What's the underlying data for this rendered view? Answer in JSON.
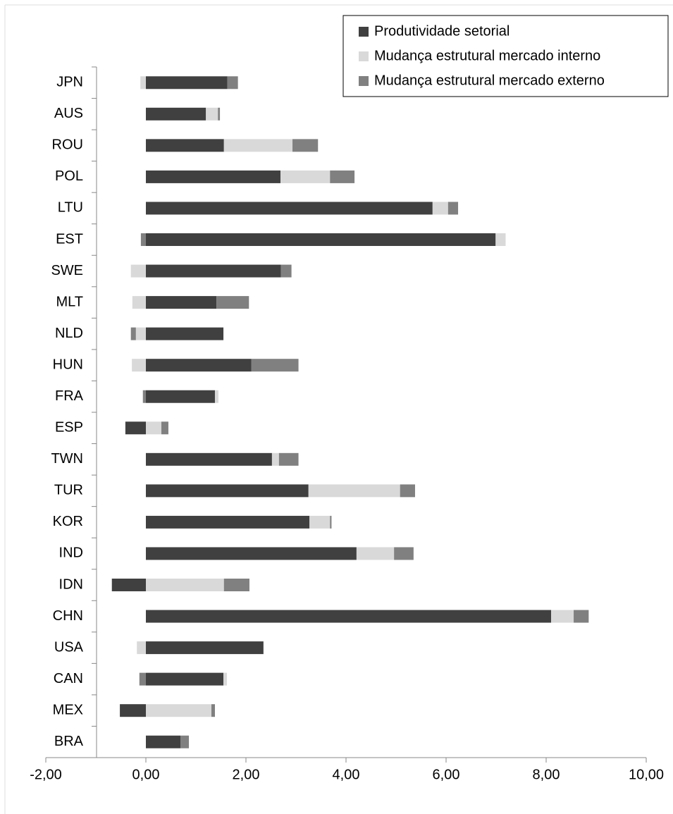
{
  "chart_data": {
    "type": "stacked-bar-horizontal",
    "categories": [
      "JPN",
      "AUS",
      "ROU",
      "POL",
      "LTU",
      "EST",
      "SWE",
      "MLT",
      "NLD",
      "HUN",
      "FRA",
      "ESP",
      "TWN",
      "TUR",
      "KOR",
      "IND",
      "IDN",
      "CHN",
      "USA",
      "CAN",
      "MEX",
      "BRA"
    ],
    "series": [
      {
        "name": "Produtividade setorial",
        "color": "#404040",
        "values": [
          1.63,
          1.2,
          1.56,
          2.69,
          5.73,
          6.99,
          2.7,
          1.41,
          1.55,
          2.11,
          1.38,
          -0.41,
          2.52,
          3.25,
          3.27,
          4.21,
          -0.68,
          8.1,
          2.35,
          1.55,
          -0.52,
          0.69
        ]
      },
      {
        "name": "Mudança estrutural mercado interno",
        "color": "#d9d9d9",
        "values": [
          -0.11,
          0.24,
          1.37,
          0.99,
          0.31,
          0.2,
          -0.3,
          -0.27,
          -0.2,
          -0.28,
          0.07,
          0.31,
          0.14,
          1.83,
          0.41,
          0.75,
          1.56,
          0.45,
          -0.18,
          0.07,
          1.31,
          0
        ]
      },
      {
        "name": "Mudança estrutural mercado externo",
        "color": "#808080",
        "values": [
          0.21,
          0.04,
          0.51,
          0.49,
          0.2,
          -0.1,
          0.21,
          0.65,
          -0.1,
          0.94,
          -0.06,
          0.14,
          0.39,
          0.3,
          0.03,
          0.39,
          0.51,
          0.3,
          0,
          -0.13,
          0.07,
          0.17
        ]
      }
    ],
    "xlim": [
      -2,
      10
    ],
    "xticks": [
      {
        "value": -2,
        "label": "-2,00"
      },
      {
        "value": 0,
        "label": "0,00"
      },
      {
        "value": 2,
        "label": "2,00"
      },
      {
        "value": 4,
        "label": "4,00"
      },
      {
        "value": 6,
        "label": "6,00"
      },
      {
        "value": 8,
        "label": "8,00"
      },
      {
        "value": 10,
        "label": "10,00"
      }
    ],
    "legend": "top-right"
  }
}
